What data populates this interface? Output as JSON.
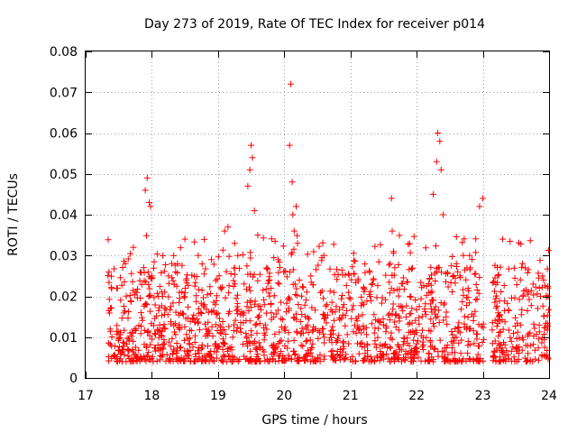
{
  "chart_data": {
    "type": "scatter",
    "title": "Day 273 of 2019, Rate Of TEC Index for receiver p014",
    "xlabel": "GPS time / hours",
    "ylabel": "ROTI / TECUs",
    "xlim": [
      17,
      24
    ],
    "ylim": [
      0,
      0.08
    ],
    "xticks": [
      17,
      18,
      19,
      20,
      21,
      22,
      23,
      24
    ],
    "xtick_labels": [
      "17",
      "18",
      "19",
      "20",
      "21",
      "22",
      "23",
      "24"
    ],
    "yticks": [
      0,
      0.01,
      0.02,
      0.03,
      0.04,
      0.05,
      0.06,
      0.07,
      0.08
    ],
    "ytick_labels": [
      "0",
      "0.01",
      "0.02",
      "0.03",
      "0.04",
      "0.05",
      "0.06",
      "0.07",
      "0.08"
    ],
    "grid": true,
    "marker": "+",
    "marker_color": "#ff0000",
    "data_start_hour": 17.33,
    "data_end_hour": 24.0,
    "typical_range": [
      0.004,
      0.025
    ],
    "series": [
      {
        "name": "ROTI",
        "x": [
          17.37,
          17.6,
          17.72,
          17.9,
          17.93,
          17.96,
          17.98,
          18.0,
          18.1,
          18.3,
          18.5,
          18.7,
          18.9,
          19.1,
          19.15,
          19.25,
          19.3,
          19.45,
          19.48,
          19.5,
          19.52,
          19.55,
          19.6,
          19.8,
          20.0,
          20.08,
          20.1,
          20.12,
          20.13,
          20.15,
          20.18,
          20.2,
          20.4,
          20.6,
          20.9,
          21.1,
          21.3,
          21.6,
          21.62,
          21.63,
          21.65,
          21.9,
          22.25,
          22.3,
          22.32,
          22.35,
          22.37,
          22.4,
          22.6,
          22.8,
          22.95,
          23.0,
          23.3,
          23.6,
          23.9
        ],
        "y": [
          0.012,
          0.028,
          0.032,
          0.046,
          0.049,
          0.043,
          0.042,
          0.025,
          0.02,
          0.028,
          0.034,
          0.03,
          0.029,
          0.036,
          0.037,
          0.033,
          0.03,
          0.047,
          0.051,
          0.057,
          0.054,
          0.041,
          0.035,
          0.022,
          0.012,
          0.057,
          0.072,
          0.048,
          0.04,
          0.036,
          0.042,
          0.033,
          0.025,
          0.03,
          0.018,
          0.014,
          0.02,
          0.028,
          0.044,
          0.036,
          0.031,
          0.02,
          0.045,
          0.053,
          0.06,
          0.058,
          0.051,
          0.04,
          0.028,
          0.03,
          0.042,
          0.044,
          0.034,
          0.028,
          0.025
        ]
      }
    ]
  }
}
